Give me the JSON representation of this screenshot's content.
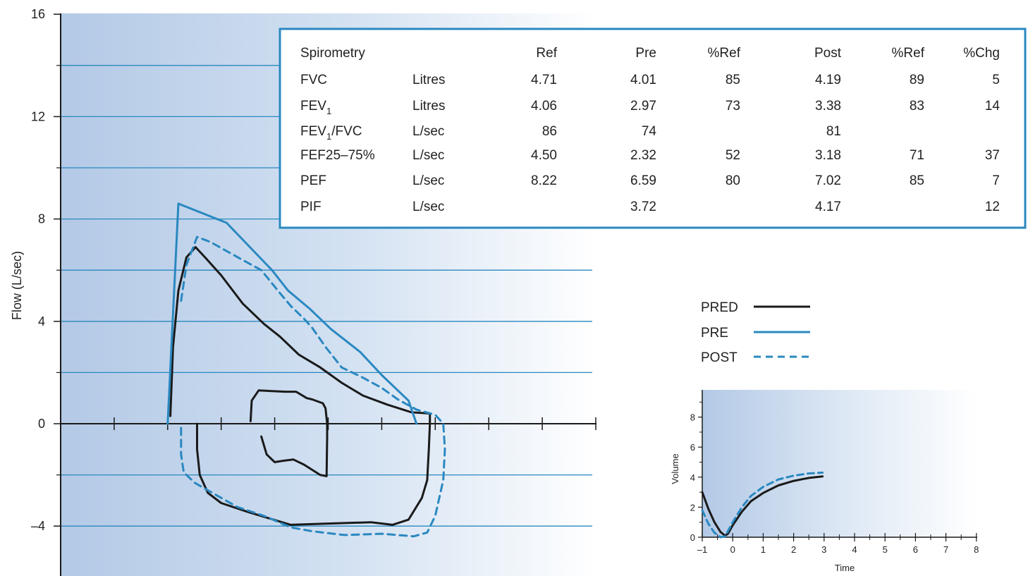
{
  "chart_data": [
    {
      "type": "line",
      "title": "",
      "xlabel": "",
      "ylabel": "Flow (L/sec)",
      "ylim": [
        -6,
        16
      ],
      "y_ticks": [
        -4,
        0,
        4,
        8,
        12,
        16
      ],
      "y_tick_labels": [
        "–4",
        "0",
        "4",
        "8",
        "12",
        "16"
      ],
      "y_minor_ticks": [
        -2,
        2,
        6,
        10,
        14
      ],
      "xlim": [
        -0.1,
        10
      ],
      "x_ticks": [
        1,
        2,
        3,
        4,
        5,
        6,
        7,
        8,
        9,
        10
      ],
      "x_tick_labels": [],
      "grid": "horizontal lines at every 2 L/sec",
      "legend": "right of plot",
      "legend_entries": [
        {
          "name": "PRED",
          "style": "solid",
          "color": "#1a1a1a"
        },
        {
          "name": "PRE",
          "style": "solid",
          "color": "#2a88c0"
        },
        {
          "name": "POST",
          "style": "dashed",
          "color": "#2a88c0"
        }
      ],
      "series": [
        {
          "name": "PRED",
          "style": "solid",
          "color": "#1a1a1a",
          "points": [
            [
              2.05,
              0.3
            ],
            [
              2.1,
              3.0
            ],
            [
              2.2,
              5.2
            ],
            [
              2.35,
              6.5
            ],
            [
              2.52,
              6.9
            ],
            [
              2.7,
              6.5
            ],
            [
              3.0,
              5.8
            ],
            [
              3.4,
              4.7
            ],
            [
              3.8,
              3.9
            ],
            [
              4.1,
              3.4
            ],
            [
              4.45,
              2.7
            ],
            [
              4.85,
              2.2
            ],
            [
              5.25,
              1.6
            ],
            [
              5.65,
              1.1
            ],
            [
              6.1,
              0.75
            ],
            [
              6.55,
              0.45
            ],
            [
              6.9,
              0.4
            ],
            [
              6.9,
              0.0
            ],
            [
              6.88,
              -1.0
            ],
            [
              6.85,
              -2.2
            ],
            [
              6.75,
              -2.9
            ],
            [
              6.5,
              -3.75
            ],
            [
              6.2,
              -3.95
            ],
            [
              5.8,
              -3.85
            ],
            [
              5.0,
              -3.9
            ],
            [
              4.3,
              -3.95
            ],
            [
              3.9,
              -3.7
            ],
            [
              3.5,
              -3.45
            ],
            [
              3.0,
              -3.1
            ],
            [
              2.75,
              -2.7
            ],
            [
              2.6,
              -2.0
            ],
            [
              2.55,
              -1.0
            ],
            [
              2.55,
              0.0
            ]
          ]
        },
        {
          "name": "PRED",
          "style": "solid",
          "color": "#1a1a1a",
          "points": [
            [
              3.55,
              0.1
            ],
            [
              3.57,
              0.9
            ],
            [
              3.7,
              1.3
            ],
            [
              4.2,
              1.25
            ],
            [
              4.4,
              1.25
            ],
            [
              4.6,
              1.0
            ],
            [
              4.7,
              0.95
            ],
            [
              4.9,
              0.8
            ],
            [
              4.95,
              0.6
            ],
            [
              4.98,
              0.0
            ],
            [
              4.98,
              -0.5
            ],
            [
              4.97,
              -2.05
            ],
            [
              4.85,
              -2.0
            ],
            [
              4.55,
              -1.6
            ],
            [
              4.35,
              -1.4
            ],
            [
              4.15,
              -1.45
            ],
            [
              4.0,
              -1.5
            ],
            [
              3.85,
              -1.2
            ],
            [
              3.75,
              -0.5
            ]
          ]
        },
        {
          "name": "PRE",
          "style": "solid",
          "color": "#2a88c0",
          "points": [
            [
              2.0,
              0.0
            ],
            [
              2.2,
              8.6
            ],
            [
              3.1,
              7.85
            ],
            [
              3.95,
              6.0
            ],
            [
              4.25,
              5.2
            ],
            [
              4.65,
              4.5
            ],
            [
              5.05,
              3.7
            ],
            [
              5.6,
              2.8
            ],
            [
              6.0,
              1.9
            ],
            [
              6.5,
              0.9
            ],
            [
              6.65,
              0.0
            ]
          ]
        },
        {
          "name": "POST",
          "style": "dashed",
          "color": "#2a88c0",
          "points": [
            [
              2.25,
              4.8
            ],
            [
              2.35,
              6.2
            ],
            [
              2.55,
              7.3
            ],
            [
              2.8,
              7.1
            ],
            [
              3.4,
              6.4
            ],
            [
              3.75,
              6.0
            ],
            [
              4.1,
              5.1
            ],
            [
              4.3,
              4.6
            ],
            [
              4.55,
              4.1
            ],
            [
              4.7,
              3.75
            ],
            [
              4.95,
              3.0
            ],
            [
              5.25,
              2.2
            ],
            [
              5.65,
              1.8
            ],
            [
              6.0,
              1.4
            ],
            [
              6.3,
              0.95
            ],
            [
              6.65,
              0.55
            ],
            [
              7.0,
              0.35
            ],
            [
              7.15,
              0.0
            ],
            [
              7.18,
              -1.0
            ],
            [
              7.15,
              -2.2
            ],
            [
              7.0,
              -3.6
            ],
            [
              6.85,
              -4.25
            ],
            [
              6.6,
              -4.4
            ],
            [
              6.0,
              -4.3
            ],
            [
              5.3,
              -4.35
            ],
            [
              4.7,
              -4.2
            ],
            [
              4.3,
              -4.05
            ],
            [
              3.8,
              -3.6
            ],
            [
              3.3,
              -3.25
            ],
            [
              2.75,
              -2.6
            ],
            [
              2.5,
              -2.3
            ],
            [
              2.3,
              -1.9
            ],
            [
              2.25,
              -1.2
            ],
            [
              2.25,
              0.0
            ]
          ]
        }
      ]
    },
    {
      "type": "line",
      "title": "",
      "xlabel": "Time",
      "ylabel": "Volume",
      "xlim": [
        -1,
        8
      ],
      "ylim": [
        0,
        9.5
      ],
      "x_ticks": [
        -1,
        0,
        1,
        2,
        3,
        4,
        5,
        6,
        7,
        8
      ],
      "x_tick_labels": [
        "–1",
        "0",
        "1",
        "2",
        "3",
        "4",
        "5",
        "6",
        "7",
        "8"
      ],
      "y_ticks": [
        0,
        2,
        4,
        6,
        8
      ],
      "y_tick_labels": [
        "0",
        "2",
        "4",
        "6",
        "8"
      ],
      "y_minor_ticks": [
        1,
        3,
        5,
        7,
        9
      ],
      "x_minor_ticks": [
        -0.5,
        0.5,
        1.5,
        2.5,
        3.5,
        4.5,
        5.5,
        6.5,
        7.5
      ],
      "grid": "off",
      "series": [
        {
          "name": "PRED",
          "style": "solid",
          "color": "#1a1a1a",
          "points": [
            [
              -1.0,
              3.0
            ],
            [
              -0.8,
              1.9
            ],
            [
              -0.6,
              1.0
            ],
            [
              -0.4,
              0.35
            ],
            [
              -0.25,
              0.1
            ],
            [
              -0.15,
              0.25
            ],
            [
              0.0,
              0.8
            ],
            [
              0.3,
              1.7
            ],
            [
              0.6,
              2.4
            ],
            [
              1.0,
              2.95
            ],
            [
              1.5,
              3.45
            ],
            [
              2.0,
              3.75
            ],
            [
              2.5,
              3.95
            ],
            [
              2.95,
              4.05
            ]
          ]
        },
        {
          "name": "POST",
          "style": "dashed",
          "color": "#2a88c0",
          "points": [
            [
              -1.0,
              1.8
            ],
            [
              -0.8,
              0.9
            ],
            [
              -0.6,
              0.3
            ],
            [
              -0.4,
              0.0
            ],
            [
              -0.25,
              0.05
            ],
            [
              0.0,
              1.0
            ],
            [
              0.3,
              2.0
            ],
            [
              0.6,
              2.75
            ],
            [
              1.0,
              3.35
            ],
            [
              1.5,
              3.85
            ],
            [
              2.0,
              4.1
            ],
            [
              2.5,
              4.25
            ],
            [
              2.95,
              4.3
            ]
          ]
        }
      ]
    }
  ],
  "table": {
    "headers": [
      "Spirometry",
      "",
      "Ref",
      "Pre",
      "%Ref",
      "Post",
      "%Ref",
      "%Chg"
    ],
    "rows": [
      {
        "label": "FVC",
        "sub": "",
        "suffix": "",
        "unit": "Litres",
        "values": [
          "4.71",
          "4.01",
          "85",
          "4.19",
          "89",
          "5"
        ]
      },
      {
        "label": "FEV",
        "sub": "1",
        "suffix": "",
        "unit": "Litres",
        "values": [
          "4.06",
          "2.97",
          "73",
          "3.38",
          "83",
          "14"
        ]
      },
      {
        "label": "FEV",
        "sub": "1",
        "suffix": "/FVC",
        "unit": "L/sec",
        "values": [
          "86",
          "74",
          "",
          "81",
          "",
          ""
        ]
      },
      {
        "label": "FEF25–75%",
        "sub": "",
        "suffix": "",
        "unit": "L/sec",
        "values": [
          "4.50",
          "2.32",
          "52",
          "3.18",
          "71",
          "37"
        ]
      },
      {
        "label": "PEF",
        "sub": "",
        "suffix": "",
        "unit": "L/sec",
        "values": [
          "8.22",
          "6.59",
          "80",
          "7.02",
          "85",
          "7"
        ]
      },
      {
        "label": "PIF",
        "sub": "",
        "suffix": "",
        "unit": "L/sec",
        "values": [
          "",
          "3.72",
          "",
          "4.17",
          "",
          "12"
        ]
      }
    ]
  },
  "colors": {
    "blue": "#2a88c0",
    "black": "#1a1a1a",
    "gradient_start": "#b3c9e6",
    "gradient_end": "#ffffff"
  }
}
